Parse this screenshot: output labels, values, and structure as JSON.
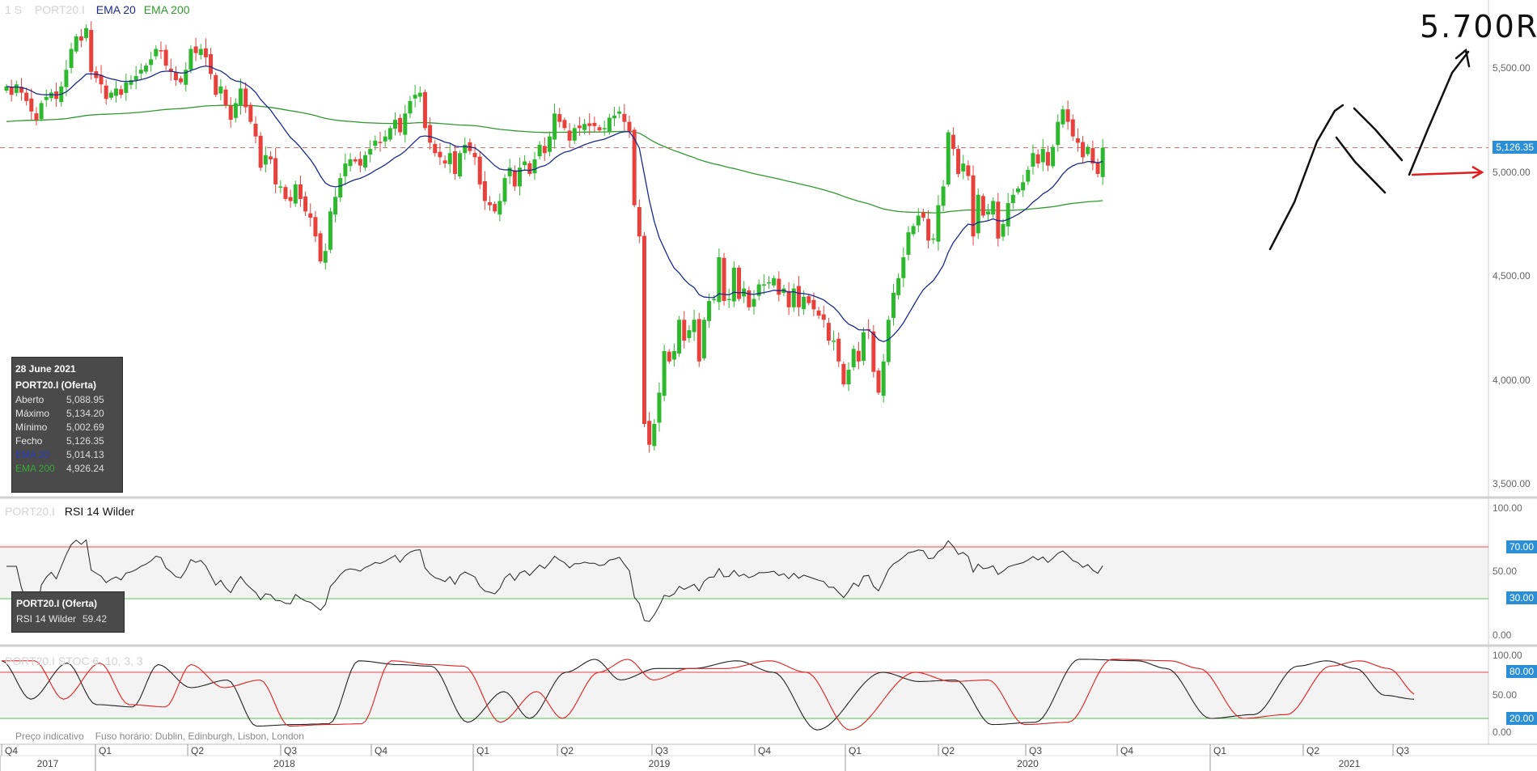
{
  "header": {
    "timeframe": "1 S",
    "symbol": "PORT20.I",
    "ema20_label": "EMA 20",
    "ema200_label": "EMA 200"
  },
  "colors": {
    "up": "#2db82d",
    "down": "#e8403a",
    "ema20": "#1c2a8c",
    "ema200": "#2f9a2f",
    "overbought": "#e05050",
    "oversold": "#4cc44c",
    "tag": "#2c8fd6",
    "annotation": "#111111"
  },
  "price_axis": {
    "labels": [
      "5,500.00",
      "5,000.00",
      "4,500.00",
      "4,000.00",
      "3,500.00"
    ],
    "current_tag": "5,126.35"
  },
  "info_box": {
    "date": "28 June 2021",
    "instrument": "PORT20.I (Oferta)",
    "rows": [
      {
        "k": "Aberto",
        "v": "5,088.95"
      },
      {
        "k": "Máximo",
        "v": "5,134.20"
      },
      {
        "k": "Mínimo",
        "v": "5,002.69"
      },
      {
        "k": "Fecho",
        "v": "5,126.35"
      },
      {
        "k": "EMA 20",
        "v": "5,014.13"
      },
      {
        "k": "EMA 200",
        "v": "4,926.24"
      }
    ]
  },
  "rsi": {
    "symbol": "PORT20.I",
    "title": "RSI 14 Wilder",
    "axis": [
      "100.00",
      "70.00",
      "50.00",
      "30.00",
      "0.00"
    ],
    "box_instrument": "PORT20.I (Oferta)",
    "box_label": "RSI 14 Wilder",
    "box_value": "59.42"
  },
  "stoch": {
    "header": "PORT20.I  STOC  6, 10, 3, 3",
    "axis": [
      "100.00",
      "80.00",
      "50.00",
      "20.00",
      "0.00"
    ],
    "footer_left": "Preço indicativo",
    "footer_tz": "Fuso horário: Dublin, Edinburgh, Lisbon, London"
  },
  "time_axis": {
    "quarters": [
      "Q4",
      "Q1",
      "Q2",
      "Q3",
      "Q4",
      "Q1",
      "Q2",
      "Q3",
      "Q4",
      "Q1",
      "Q2",
      "Q3",
      "Q4",
      "Q1",
      "Q2",
      "Q3"
    ],
    "years": [
      "2017",
      "2018",
      "2019",
      "2020",
      "2021"
    ]
  },
  "annotation": {
    "target_text": "5.700R"
  },
  "chart_data": {
    "type": "candlestick",
    "x_range": [
      "2017-Q4",
      "2021-Q3"
    ],
    "ylim": [
      3450,
      5720
    ],
    "reference_price": 5126.35,
    "close": [
      5420,
      5380,
      5430,
      5390,
      5350,
      5300,
      5260,
      5340,
      5370,
      5390,
      5360,
      5420,
      5500,
      5600,
      5660,
      5640,
      5700,
      5490,
      5460,
      5430,
      5360,
      5390,
      5410,
      5380,
      5440,
      5450,
      5470,
      5500,
      5520,
      5550,
      5600,
      5590,
      5520,
      5490,
      5450,
      5440,
      5500,
      5600,
      5580,
      5600,
      5560,
      5480,
      5380,
      5420,
      5330,
      5260,
      5340,
      5410,
      5320,
      5250,
      5180,
      5030,
      5090,
      5070,
      4950,
      4940,
      4880,
      4870,
      4950,
      4880,
      4820,
      4790,
      4700,
      4580,
      4630,
      4820,
      4890,
      4980,
      5050,
      5070,
      5060,
      5040,
      5090,
      5120,
      5160,
      5150,
      5180,
      5220,
      5260,
      5200,
      5290,
      5350,
      5380,
      5390,
      5220,
      5150,
      5100,
      5080,
      5050,
      5100,
      5000,
      5100,
      5140,
      5110,
      5080,
      4950,
      4870,
      4850,
      4820,
      4870,
      4980,
      5030,
      4940,
      5030,
      5060,
      5000,
      5070,
      5140,
      5100,
      5180,
      5290,
      5250,
      5220,
      5160,
      5220,
      5220,
      5240,
      5230,
      5230,
      5210,
      5220,
      5270,
      5280,
      5300,
      5250,
      5200,
      4850,
      4700,
      3800,
      3700,
      3800,
      3950,
      4150,
      4100,
      4150,
      4300,
      4200,
      4250,
      4300,
      4100,
      4300,
      4390,
      4400,
      4600,
      4390,
      4400,
      4550,
      4400,
      4450,
      4360,
      4400,
      4470,
      4470,
      4480,
      4500,
      4420,
      4450,
      4360,
      4450,
      4360,
      4410,
      4380,
      4350,
      4320,
      4300,
      4200,
      4200,
      4100,
      3990,
      4060,
      4160,
      4100,
      4240,
      4250,
      4050,
      3950,
      4100,
      4300,
      4430,
      4500,
      4600,
      4720,
      4750,
      4800,
      4790,
      4680,
      4690,
      4850,
      4940,
      5200,
      5120,
      5000,
      5050,
      4990,
      4700,
      4900,
      4800,
      4820,
      4870,
      4690,
      4760,
      4860,
      4900,
      4930,
      4960,
      5020,
      5100,
      5050,
      5120,
      5040,
      5130,
      5250,
      5310,
      5250,
      5180,
      5150,
      5080,
      5130,
      5050,
      5000,
      5126
    ],
    "ema20_label": "EMA 20",
    "ema200_label": "EMA 200",
    "ema20_last": 5014.13,
    "ema200_last": 4926.24,
    "rsi": {
      "ylim": [
        0,
        100
      ],
      "levels": [
        70,
        30
      ],
      "last": 59.42
    },
    "stoch": {
      "ylim": [
        0,
        100
      ],
      "levels": [
        80,
        20
      ],
      "k_keypoints": [
        [
          0,
          95
        ],
        [
          8,
          45
        ],
        [
          18,
          92
        ],
        [
          26,
          38
        ],
        [
          36,
          35
        ],
        [
          43,
          90
        ],
        [
          52,
          60
        ],
        [
          62,
          70
        ],
        [
          70,
          10
        ],
        [
          80,
          12
        ],
        [
          90,
          13
        ],
        [
          98,
          95
        ],
        [
          109,
          90
        ],
        [
          118,
          88
        ],
        [
          128,
          15
        ],
        [
          138,
          55
        ],
        [
          145,
          20
        ],
        [
          155,
          80
        ],
        [
          163,
          97
        ],
        [
          170,
          70
        ],
        [
          180,
          85
        ],
        [
          190,
          85
        ],
        [
          202,
          95
        ],
        [
          212,
          80
        ],
        [
          224,
          5
        ],
        [
          242,
          80
        ],
        [
          252,
          68
        ],
        [
          262,
          70
        ],
        [
          272,
          12
        ],
        [
          284,
          15
        ],
        [
          296,
          97
        ],
        [
          312,
          95
        ],
        [
          320,
          85
        ],
        [
          332,
          20
        ],
        [
          344,
          25
        ],
        [
          356,
          88
        ],
        [
          364,
          95
        ],
        [
          372,
          85
        ],
        [
          380,
          50
        ],
        [
          388,
          45
        ]
      ],
      "d_lag": 3
    }
  }
}
